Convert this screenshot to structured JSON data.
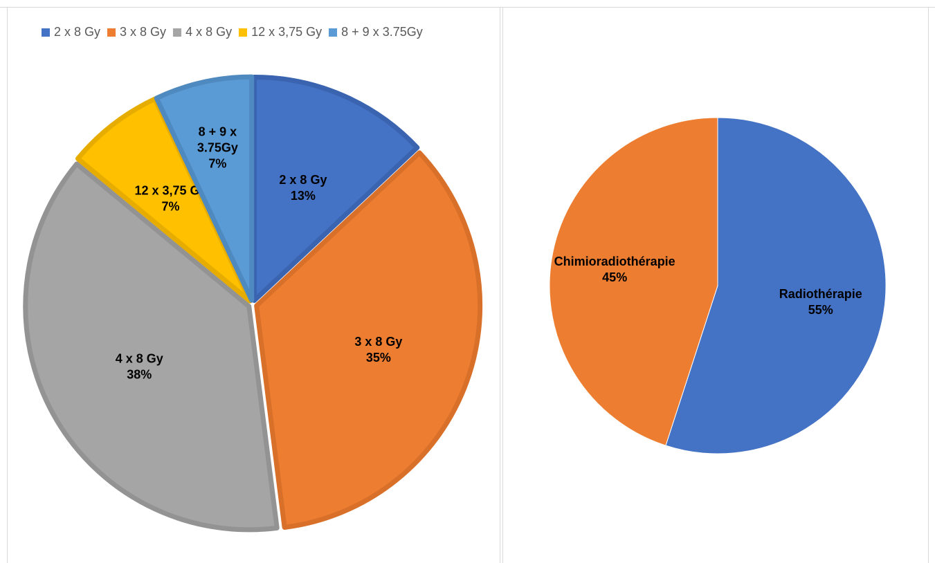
{
  "chart_data": [
    {
      "type": "pie",
      "legend_position": "top",
      "exploded": true,
      "categories": [
        "2 x 8 Gy",
        "3 x 8 Gy",
        "4 x 8 Gy",
        "12 x 3,75 Gy",
        "8 + 9 x 3.75Gy"
      ],
      "values": [
        13,
        35,
        38,
        7,
        7
      ],
      "percent_labels": [
        "13%",
        "35%",
        "38%",
        "7%",
        "7%"
      ],
      "slice_labels": [
        [
          "2 x 8 Gy"
        ],
        [
          "3 x 8 Gy"
        ],
        [
          "4 x 8 Gy"
        ],
        [
          "12 x 3,75 Gy"
        ],
        [
          "8 + 9 x",
          "3.75Gy"
        ]
      ],
      "colors": [
        "#4472C4",
        "#ED7D31",
        "#A5A5A5",
        "#FFC000",
        "#5B9BD5"
      ],
      "border_colors": [
        "#3A64B0",
        "#D8702A",
        "#939393",
        "#E6AC00",
        "#4E89BF"
      ]
    },
    {
      "type": "pie",
      "legend_position": "none",
      "categories": [
        "Radiothérapie",
        "Chimioradiothérapie"
      ],
      "values": [
        55,
        45
      ],
      "percent_labels": [
        "55%",
        "45%"
      ],
      "colors": [
        "#4472C4",
        "#ED7D31"
      ]
    }
  ]
}
